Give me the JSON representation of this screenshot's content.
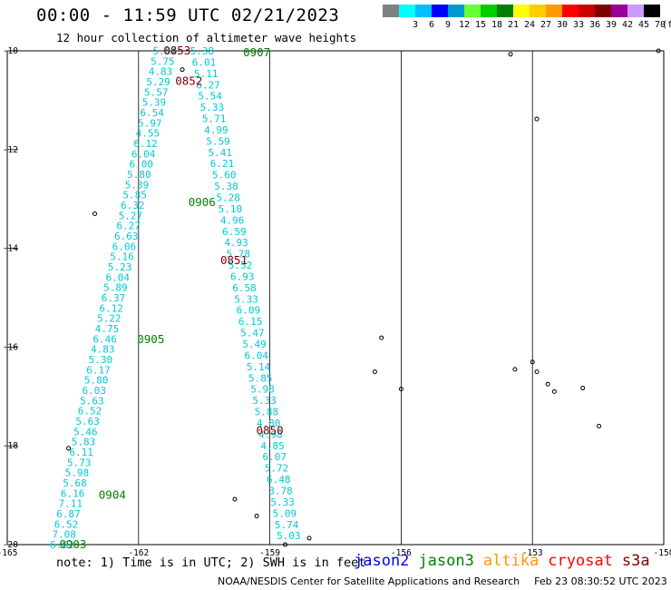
{
  "header": {
    "title": "00:00 - 11:59 UTC 02/21/2023",
    "subtitle": "12 hour collection of altimeter wave heights"
  },
  "colorbar": {
    "unit": "(ft)",
    "entries": [
      {
        "color": "#808080",
        "label": ""
      },
      {
        "color": "#00ffff",
        "label": "3"
      },
      {
        "color": "#00bfff",
        "label": "6"
      },
      {
        "color": "#0000ff",
        "label": "9"
      },
      {
        "color": "#0099cc",
        "label": "12"
      },
      {
        "color": "#66ff33",
        "label": "15"
      },
      {
        "color": "#00cc00",
        "label": "18"
      },
      {
        "color": "#008000",
        "label": "21"
      },
      {
        "color": "#ffff00",
        "label": "24"
      },
      {
        "color": "#ffcc00",
        "label": "27"
      },
      {
        "color": "#ff9900",
        "label": "30"
      },
      {
        "color": "#ff0000",
        "label": "33"
      },
      {
        "color": "#cc0000",
        "label": "36"
      },
      {
        "color": "#800000",
        "label": "39"
      },
      {
        "color": "#990099",
        "label": "42"
      },
      {
        "color": "#cc99ff",
        "label": "45"
      },
      {
        "color": "#000000",
        "label": "70"
      }
    ]
  },
  "map": {
    "lat_range": [
      -20,
      -10
    ],
    "lon_range": [
      -165,
      -150
    ],
    "lat_ticks": [
      "-10",
      "-12",
      "-14",
      "-16",
      "-18",
      "-20"
    ],
    "lon_ticks": [
      "-165",
      "-162",
      "-159",
      "-156",
      "-153",
      "-150"
    ],
    "pass_labels": [
      {
        "text": "0853",
        "color": "#800000",
        "lat": -10.0,
        "lon": -161.12
      },
      {
        "text": "0907",
        "color": "#008000",
        "lat": -10.04,
        "lon": -159.3
      },
      {
        "text": "0852",
        "color": "#800000",
        "lat": -10.62,
        "lon": -160.85
      },
      {
        "text": "0906",
        "color": "#008000",
        "lat": -13.07,
        "lon": -160.55
      },
      {
        "text": "0851",
        "color": "#800000",
        "lat": -14.25,
        "lon": -159.82
      },
      {
        "text": "0905",
        "color": "#008000",
        "lat": -15.85,
        "lon": -161.72
      },
      {
        "text": "0850",
        "color": "#800000",
        "lat": -17.69,
        "lon": -159.0
      },
      {
        "text": "0904",
        "color": "#008000",
        "lat": -19.0,
        "lon": -162.6
      },
      {
        "text": "0903",
        "color": "#008000",
        "lat": -20.0,
        "lon": -163.5
      }
    ],
    "track_a_values": [
      "5.84",
      "5.75",
      "4.83",
      "5.29",
      "5.57",
      "5.39",
      "6.54",
      "5.97",
      "4.55",
      "6.12",
      "6.04",
      "6.00",
      "5.80",
      "5.39",
      "5.85",
      "6.32",
      "5.27",
      "6.27",
      "6.63",
      "6.06",
      "5.16",
      "5.23",
      "6.04",
      "5.89",
      "6.37",
      "6.12",
      "5.22",
      "4.75",
      "6.46",
      "4.83",
      "5.30",
      "6.17",
      "5.80",
      "6.03",
      "5.63",
      "6.52",
      "5.63",
      "5.46",
      "5.83",
      "6.11",
      "5.73",
      "5.98",
      "5.68",
      "6.16",
      "7.11",
      "6.87",
      "6.52",
      "7.08",
      "6.62"
    ],
    "track_b_values": [
      "5.38",
      "6.01",
      "5.11",
      "6.27",
      "5.54",
      "5.33",
      "5.71",
      "4.99",
      "5.59",
      "5.41",
      "6.21",
      "5.60",
      "5.38",
      "5.28",
      "5.10",
      "4.96",
      "6.59",
      "4.93",
      "5.78",
      "5.52",
      "6.93",
      "6.58",
      "5.33",
      "6.09",
      "6.15",
      "5.47",
      "5.49",
      "6.04",
      "5.14",
      "5.85",
      "5.98",
      "5.33",
      "5.88",
      "4.80",
      "4.98",
      "4.85",
      "6.07",
      "5.72",
      "6.48",
      "3.78",
      "5.33",
      "5.09",
      "5.74",
      "5.03"
    ],
    "islands": [
      {
        "lat": -10.07,
        "lon": -153.5
      },
      {
        "lat": -10.0,
        "lon": -150.12
      },
      {
        "lat": -11.38,
        "lon": -152.9
      },
      {
        "lat": -10.38,
        "lon": -161.0
      },
      {
        "lat": -10.02,
        "lon": -161.2
      },
      {
        "lat": -13.3,
        "lon": -163.0
      },
      {
        "lat": -15.81,
        "lon": -156.45
      },
      {
        "lat": -16.5,
        "lon": -156.6
      },
      {
        "lat": -16.85,
        "lon": -156.0
      },
      {
        "lat": -16.3,
        "lon": -153.0
      },
      {
        "lat": -16.45,
        "lon": -153.4
      },
      {
        "lat": -16.5,
        "lon": -152.9
      },
      {
        "lat": -16.75,
        "lon": -152.65
      },
      {
        "lat": -16.9,
        "lon": -152.5
      },
      {
        "lat": -16.83,
        "lon": -151.85
      },
      {
        "lat": -17.6,
        "lon": -151.48
      },
      {
        "lat": -18.05,
        "lon": -163.6
      },
      {
        "lat": -19.08,
        "lon": -159.8
      },
      {
        "lat": -19.42,
        "lon": -159.3
      },
      {
        "lat": -19.87,
        "lon": -158.1
      },
      {
        "lat": -20.0,
        "lon": -158.65
      }
    ]
  },
  "footer": {
    "note": "note: 1) Time is in UTC; 2) SWH is in feet",
    "satellites": [
      {
        "name": "jason2",
        "color": "#0000ff"
      },
      {
        "name": "jason3",
        "color": "#008000"
      },
      {
        "name": "altika",
        "color": "#ff9900"
      },
      {
        "name": "cryosat",
        "color": "#ff0000"
      },
      {
        "name": "s3a",
        "color": "#800000"
      }
    ],
    "credit": "NOAA/NESDIS Center for Satellite Applications and Research",
    "timestamp": "Feb 23 08:30:52 UTC 2023"
  }
}
